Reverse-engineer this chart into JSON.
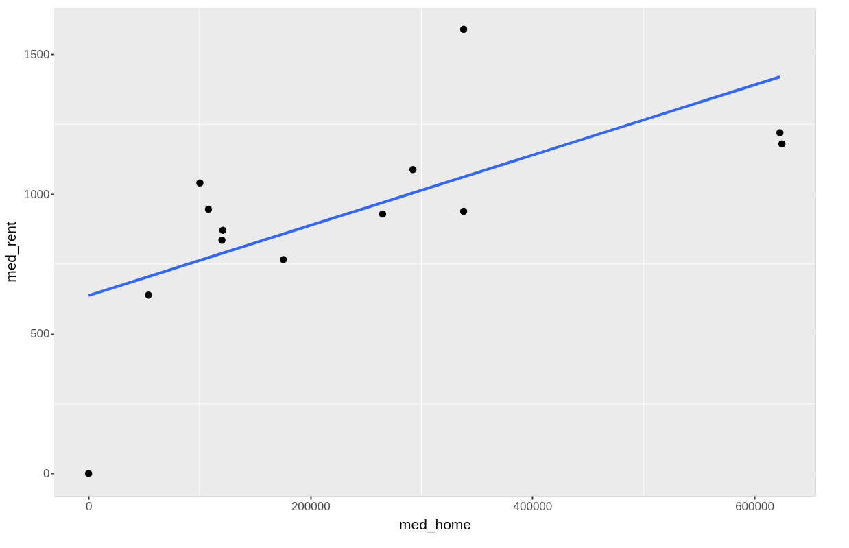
{
  "chart_data": {
    "type": "scatter",
    "xlabel": "med_home",
    "ylabel": "med_rent",
    "xlim": [
      -31000,
      655000
    ],
    "ylim": [
      -80,
      1668
    ],
    "xticks": [
      0,
      200000,
      400000,
      600000
    ],
    "yticks": [
      0,
      500,
      1000,
      1500
    ],
    "grid": true,
    "series": [
      {
        "color": "#000000",
        "marker": "circle",
        "x": [
          0,
          54000,
          100300,
          108000,
          121000,
          120200,
          175500,
          265000,
          292300,
          338000,
          338000,
          623000,
          624800
        ],
        "values": [
          0,
          639,
          1040,
          946,
          871,
          835,
          766,
          929,
          1088,
          1590,
          939,
          1220,
          1180
        ]
      },
      {
        "type": "line",
        "color": "#3366ff",
        "line_style": "solid",
        "x": [
          0,
          623000
        ],
        "values": [
          637,
          1420
        ]
      }
    ]
  }
}
